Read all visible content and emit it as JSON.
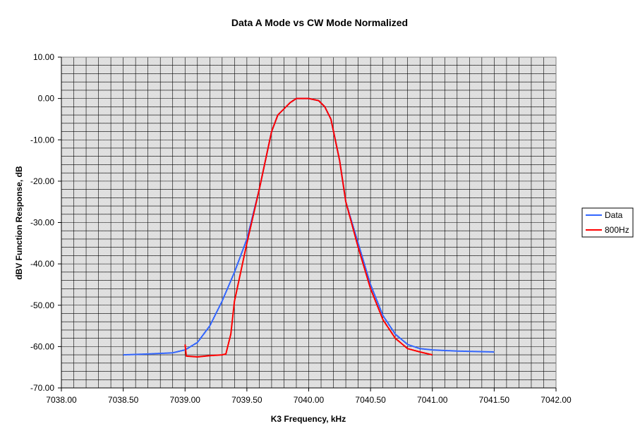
{
  "chart_data": {
    "type": "line",
    "title": "Data A Mode vs CW Mode Normalized",
    "xlabel": "K3 Frequency, kHz",
    "ylabel": "dBV Function Response, dB",
    "xlim": [
      7038.0,
      7042.0
    ],
    "ylim": [
      -70,
      10
    ],
    "x_ticks": [
      "7038.00",
      "7038.50",
      "7039.00",
      "7039.50",
      "7040.00",
      "7040.50",
      "7041.00",
      "7041.50",
      "7042.00"
    ],
    "y_ticks": [
      "10.00",
      "0.00",
      "-10.00",
      "-20.00",
      "-30.00",
      "-40.00",
      "-50.00",
      "-60.00",
      "-70.00"
    ],
    "grid": true,
    "legend_position": "right",
    "series": [
      {
        "name": "Data",
        "color": "#3366ff",
        "x": [
          7038.5,
          7038.7,
          7038.9,
          7039.0,
          7039.1,
          7039.2,
          7039.3,
          7039.4,
          7039.5,
          7039.6,
          7039.7,
          7039.75,
          7039.8,
          7039.85,
          7039.9,
          7040.0,
          7040.08,
          7040.13,
          7040.18,
          7040.25,
          7040.3,
          7040.4,
          7040.5,
          7040.6,
          7040.7,
          7040.8,
          7040.9,
          7041.0,
          7041.2,
          7041.5
        ],
        "y": [
          -62,
          -61.8,
          -61.5,
          -60.8,
          -59,
          -55,
          -49,
          -42,
          -34,
          -22,
          -8,
          -4,
          -2.5,
          -1,
          0,
          0,
          -0.5,
          -2,
          -5,
          -15,
          -25,
          -35,
          -45,
          -52.5,
          -57,
          -59.5,
          -60.5,
          -60.8,
          -61.1,
          -61.3
        ]
      },
      {
        "name": "800Hz",
        "color": "#ff0000",
        "x": [
          7039.0,
          7039.01,
          7039.1,
          7039.2,
          7039.3,
          7039.33,
          7039.37,
          7039.4,
          7039.45,
          7039.5,
          7039.6,
          7039.7,
          7039.75,
          7039.8,
          7039.85,
          7039.9,
          7040.0,
          7040.08,
          7040.13,
          7040.18,
          7040.25,
          7040.3,
          7040.4,
          7040.5,
          7040.6,
          7040.7,
          7040.8,
          7040.9,
          7041.0
        ],
        "y": [
          -59.5,
          -62.3,
          -62.5,
          -62.2,
          -62,
          -61.8,
          -57,
          -49,
          -42,
          -35,
          -22,
          -8,
          -4,
          -2.5,
          -1,
          0,
          0,
          -0.5,
          -2,
          -5,
          -15,
          -25,
          -36,
          -46,
          -53.5,
          -58,
          -60.5,
          -61.3,
          -62
        ]
      }
    ]
  }
}
